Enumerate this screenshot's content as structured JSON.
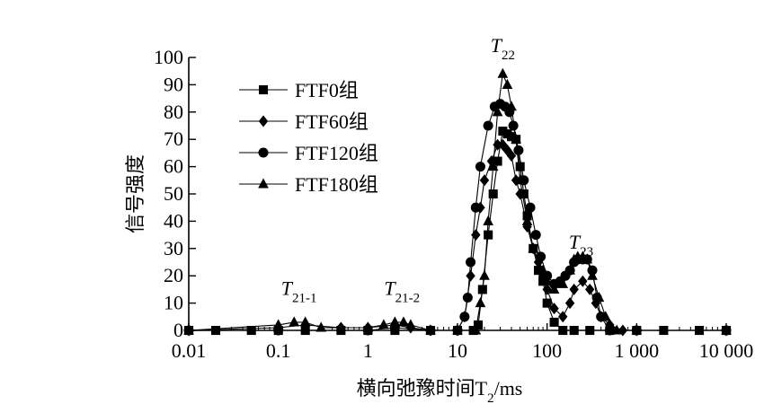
{
  "chart_data": {
    "type": "line",
    "x_scale": "log",
    "xlabel": "横向弛豫时间T2/ms",
    "ylabel": "信号强度",
    "xlim": [
      0.01,
      10000
    ],
    "ylim": [
      0,
      100
    ],
    "x_ticks": [
      0.01,
      0.1,
      1,
      10,
      100,
      1000,
      10000
    ],
    "x_tick_labels": [
      "0.01",
      "0.1",
      "1",
      "10",
      "100",
      "1 000",
      "10 000"
    ],
    "y_ticks": [
      0,
      10,
      20,
      30,
      40,
      50,
      60,
      70,
      80,
      90,
      100
    ],
    "y_tick_labels": [
      "0",
      "10",
      "20",
      "30",
      "40",
      "50",
      "60",
      "70",
      "80",
      "90",
      "100"
    ],
    "legend_position": "top-left",
    "grid": false,
    "series": [
      {
        "name": "FTF0组",
        "marker": "square",
        "points": [
          [
            0.01,
            0
          ],
          [
            0.02,
            0
          ],
          [
            0.05,
            0
          ],
          [
            0.1,
            0
          ],
          [
            0.2,
            0
          ],
          [
            0.5,
            0
          ],
          [
            1,
            0
          ],
          [
            2,
            0
          ],
          [
            5,
            0
          ],
          [
            10,
            0
          ],
          [
            15,
            0
          ],
          [
            17,
            2
          ],
          [
            19,
            15
          ],
          [
            22,
            35
          ],
          [
            25,
            50
          ],
          [
            28,
            62
          ],
          [
            32,
            73
          ],
          [
            36,
            72
          ],
          [
            40,
            71
          ],
          [
            45,
            70
          ],
          [
            50,
            60
          ],
          [
            55,
            50
          ],
          [
            60,
            42
          ],
          [
            70,
            30
          ],
          [
            80,
            22
          ],
          [
            90,
            18
          ],
          [
            100,
            10
          ],
          [
            120,
            3
          ],
          [
            150,
            0
          ],
          [
            200,
            0
          ],
          [
            300,
            0
          ],
          [
            500,
            0
          ],
          [
            1000,
            0
          ],
          [
            2000,
            0
          ],
          [
            5000,
            0
          ],
          [
            10000,
            0
          ]
        ]
      },
      {
        "name": "FTF60组",
        "marker": "diamond",
        "points": [
          [
            0.01,
            0
          ],
          [
            0.1,
            1
          ],
          [
            0.2,
            2
          ],
          [
            0.5,
            1
          ],
          [
            1,
            1
          ],
          [
            2,
            2
          ],
          [
            3,
            1
          ],
          [
            5,
            0
          ],
          [
            10,
            0
          ],
          [
            12,
            5
          ],
          [
            14,
            20
          ],
          [
            16,
            35
          ],
          [
            18,
            45
          ],
          [
            20,
            55
          ],
          [
            24,
            62
          ],
          [
            28,
            68
          ],
          [
            32,
            68
          ],
          [
            36,
            66
          ],
          [
            40,
            64
          ],
          [
            45,
            55
          ],
          [
            50,
            50
          ],
          [
            60,
            38
          ],
          [
            70,
            30
          ],
          [
            80,
            25
          ],
          [
            90,
            20
          ],
          [
            100,
            15
          ],
          [
            120,
            8
          ],
          [
            150,
            5
          ],
          [
            180,
            10
          ],
          [
            200,
            15
          ],
          [
            250,
            18
          ],
          [
            300,
            15
          ],
          [
            350,
            10
          ],
          [
            400,
            5
          ],
          [
            500,
            2
          ],
          [
            700,
            0
          ],
          [
            1000,
            0
          ],
          [
            10000,
            0
          ]
        ]
      },
      {
        "name": "FTF120组",
        "marker": "circle",
        "points": [
          [
            0.01,
            0
          ],
          [
            0.1,
            0
          ],
          [
            1,
            0
          ],
          [
            2,
            1
          ],
          [
            5,
            0
          ],
          [
            10,
            0
          ],
          [
            12,
            5
          ],
          [
            13,
            12
          ],
          [
            14,
            25
          ],
          [
            16,
            45
          ],
          [
            18,
            60
          ],
          [
            22,
            75
          ],
          [
            26,
            82
          ],
          [
            30,
            83
          ],
          [
            34,
            82
          ],
          [
            38,
            80
          ],
          [
            42,
            75
          ],
          [
            48,
            66
          ],
          [
            55,
            55
          ],
          [
            65,
            45
          ],
          [
            75,
            35
          ],
          [
            85,
            27
          ],
          [
            100,
            20
          ],
          [
            120,
            17
          ],
          [
            140,
            18
          ],
          [
            160,
            20
          ],
          [
            180,
            22
          ],
          [
            200,
            25
          ],
          [
            220,
            26
          ],
          [
            250,
            26
          ],
          [
            280,
            26
          ],
          [
            320,
            22
          ],
          [
            360,
            12
          ],
          [
            400,
            5
          ],
          [
            500,
            0
          ],
          [
            1000,
            0
          ],
          [
            10000,
            0
          ]
        ]
      },
      {
        "name": "FTF180组",
        "marker": "triangle",
        "points": [
          [
            0.01,
            0
          ],
          [
            0.1,
            2
          ],
          [
            0.15,
            3
          ],
          [
            0.2,
            3
          ],
          [
            0.3,
            1
          ],
          [
            1,
            1
          ],
          [
            1.5,
            2
          ],
          [
            2,
            3
          ],
          [
            2.5,
            3
          ],
          [
            3,
            2
          ],
          [
            5,
            0
          ],
          [
            10,
            0
          ],
          [
            16,
            0
          ],
          [
            18,
            10
          ],
          [
            20,
            20
          ],
          [
            22,
            40
          ],
          [
            25,
            60
          ],
          [
            28,
            80
          ],
          [
            32,
            94
          ],
          [
            36,
            90
          ],
          [
            40,
            82
          ],
          [
            45,
            70
          ],
          [
            50,
            55
          ],
          [
            60,
            40
          ],
          [
            70,
            30
          ],
          [
            90,
            22
          ],
          [
            100,
            18
          ],
          [
            120,
            15
          ],
          [
            150,
            17
          ],
          [
            180,
            22
          ],
          [
            200,
            26
          ],
          [
            220,
            27
          ],
          [
            250,
            27
          ],
          [
            280,
            26
          ],
          [
            320,
            20
          ],
          [
            380,
            12
          ],
          [
            450,
            5
          ],
          [
            600,
            0
          ],
          [
            1000,
            0
          ],
          [
            10000,
            0
          ]
        ]
      }
    ],
    "annotations": [
      {
        "main": "T",
        "sub": "21-1",
        "x": 0.17,
        "y": 13
      },
      {
        "main": "T",
        "sub": "21-2",
        "x": 2.4,
        "y": 13
      },
      {
        "main": "T",
        "sub": "22",
        "x": 32,
        "y": 102
      },
      {
        "main": "T",
        "sub": "23",
        "x": 240,
        "y": 30
      }
    ]
  }
}
